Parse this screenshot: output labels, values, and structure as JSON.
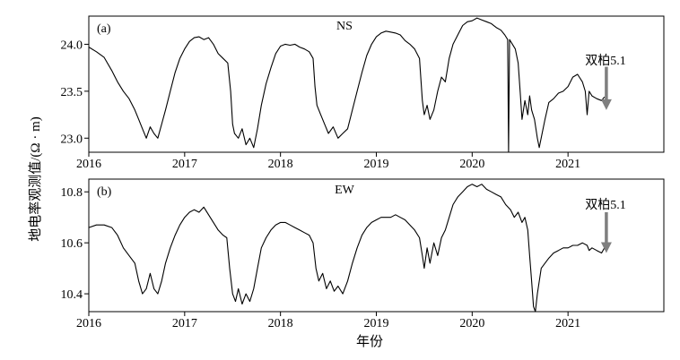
{
  "figure": {
    "xlabel": "年份",
    "ylabel": "地电率观测值/(Ω · m)"
  },
  "chart_data": [
    {
      "type": "line",
      "panel_label": "(a)",
      "title": "NS",
      "xlim": [
        2016.0,
        2022.0
      ],
      "ylim": [
        22.85,
        24.3
      ],
      "xticks": [
        2016,
        2017,
        2018,
        2019,
        2020,
        2021
      ],
      "yticks": [
        23.0,
        23.5,
        24.0
      ],
      "ytick_labels": [
        "23.0",
        "23.5",
        "24.0"
      ],
      "annotation": {
        "text": "双柏5.1",
        "x": 2021.4,
        "arrow_from": 23.76,
        "arrow_to": 23.3
      },
      "series": [
        {
          "x": [
            2016.0,
            2016.08,
            2016.16,
            2016.24,
            2016.3,
            2016.36,
            2016.42,
            2016.48,
            2016.52,
            2016.56,
            2016.6,
            2016.64,
            2016.68,
            2016.72,
            2016.76,
            2016.8,
            2016.85,
            2016.9,
            2016.95,
            2017.0,
            2017.05,
            2017.1,
            2017.15,
            2017.2,
            2017.25,
            2017.3,
            2017.35,
            2017.4,
            2017.45,
            2017.48,
            2017.5,
            2017.52,
            2017.56,
            2017.6,
            2017.64,
            2017.68,
            2017.72,
            2017.76,
            2017.8,
            2017.85,
            2017.9,
            2017.95,
            2018.0,
            2018.05,
            2018.1,
            2018.15,
            2018.2,
            2018.25,
            2018.3,
            2018.34,
            2018.36,
            2018.38,
            2018.42,
            2018.46,
            2018.5,
            2018.55,
            2018.6,
            2018.65,
            2018.7,
            2018.75,
            2018.8,
            2018.85,
            2018.9,
            2018.95,
            2019.0,
            2019.05,
            2019.1,
            2019.15,
            2019.2,
            2019.25,
            2019.3,
            2019.35,
            2019.4,
            2019.45,
            2019.48,
            2019.5,
            2019.53,
            2019.56,
            2019.6,
            2019.64,
            2019.68,
            2019.72,
            2019.76,
            2019.8,
            2019.85,
            2019.9,
            2019.95,
            2020.0,
            2020.05,
            2020.1,
            2020.15,
            2020.2,
            2020.25,
            2020.3,
            2020.34,
            2020.37,
            2020.38,
            2020.39,
            2020.42,
            2020.45,
            2020.48,
            2020.5,
            2020.52,
            2020.55,
            2020.58,
            2020.6,
            2020.62,
            2020.65,
            2020.68,
            2020.7,
            2020.73,
            2020.76,
            2020.8,
            2020.85,
            2020.9,
            2020.95,
            2021.0,
            2021.05,
            2021.1,
            2021.15,
            2021.18,
            2021.2,
            2021.22,
            2021.25,
            2021.3,
            2021.35,
            2021.38
          ],
          "y": [
            23.97,
            23.92,
            23.86,
            23.72,
            23.6,
            23.5,
            23.42,
            23.3,
            23.2,
            23.1,
            23.0,
            23.12,
            23.05,
            23.0,
            23.15,
            23.3,
            23.5,
            23.7,
            23.85,
            23.95,
            24.03,
            24.07,
            24.08,
            24.05,
            24.07,
            24.0,
            23.9,
            23.85,
            23.8,
            23.5,
            23.15,
            23.05,
            23.0,
            23.1,
            22.93,
            23.0,
            22.9,
            23.1,
            23.35,
            23.58,
            23.75,
            23.9,
            23.98,
            24.0,
            23.99,
            24.0,
            23.97,
            23.95,
            23.92,
            23.85,
            23.55,
            23.35,
            23.25,
            23.15,
            23.05,
            23.12,
            23.0,
            23.05,
            23.1,
            23.3,
            23.5,
            23.7,
            23.88,
            24.0,
            24.08,
            24.12,
            24.14,
            24.13,
            24.12,
            24.1,
            24.04,
            24.0,
            23.95,
            23.85,
            23.4,
            23.25,
            23.35,
            23.2,
            23.3,
            23.5,
            23.65,
            23.6,
            23.85,
            24.0,
            24.1,
            24.2,
            24.24,
            24.25,
            24.28,
            24.26,
            24.24,
            24.22,
            24.18,
            24.15,
            24.1,
            24.05,
            22.85,
            24.05,
            24.0,
            23.95,
            23.8,
            23.5,
            23.2,
            23.4,
            23.25,
            23.45,
            23.3,
            23.2,
            23.0,
            22.9,
            23.05,
            23.2,
            23.38,
            23.42,
            23.48,
            23.5,
            23.55,
            23.65,
            23.68,
            23.6,
            23.5,
            23.25,
            23.5,
            23.45,
            23.42,
            23.4,
            23.44
          ]
        }
      ]
    },
    {
      "type": "line",
      "panel_label": "(b)",
      "title": "EW",
      "xlim": [
        2016.0,
        2022.0
      ],
      "ylim": [
        10.33,
        10.85
      ],
      "xticks": [
        2016,
        2017,
        2018,
        2019,
        2020,
        2021
      ],
      "yticks": [
        10.4,
        10.6,
        10.8
      ],
      "ytick_labels": [
        "10.4",
        "10.6",
        "10.8"
      ],
      "annotation": {
        "text": "双柏5.1",
        "x": 2021.4,
        "arrow_from": 10.72,
        "arrow_to": 10.56
      },
      "series": [
        {
          "x": [
            2016.0,
            2016.08,
            2016.16,
            2016.24,
            2016.3,
            2016.36,
            2016.42,
            2016.48,
            2016.52,
            2016.56,
            2016.6,
            2016.64,
            2016.68,
            2016.72,
            2016.76,
            2016.8,
            2016.85,
            2016.9,
            2016.95,
            2017.0,
            2017.05,
            2017.1,
            2017.15,
            2017.2,
            2017.25,
            2017.3,
            2017.35,
            2017.4,
            2017.44,
            2017.47,
            2017.5,
            2017.53,
            2017.56,
            2017.6,
            2017.64,
            2017.68,
            2017.72,
            2017.76,
            2017.8,
            2017.85,
            2017.9,
            2017.95,
            2018.0,
            2018.05,
            2018.1,
            2018.15,
            2018.2,
            2018.25,
            2018.3,
            2018.34,
            2018.37,
            2018.4,
            2018.44,
            2018.48,
            2018.52,
            2018.56,
            2018.6,
            2018.65,
            2018.7,
            2018.75,
            2018.8,
            2018.85,
            2018.9,
            2018.95,
            2019.0,
            2019.05,
            2019.1,
            2019.15,
            2019.2,
            2019.25,
            2019.3,
            2019.35,
            2019.4,
            2019.45,
            2019.48,
            2019.5,
            2019.53,
            2019.56,
            2019.6,
            2019.64,
            2019.68,
            2019.72,
            2019.76,
            2019.8,
            2019.85,
            2019.9,
            2019.95,
            2020.0,
            2020.05,
            2020.1,
            2020.15,
            2020.2,
            2020.25,
            2020.3,
            2020.35,
            2020.4,
            2020.44,
            2020.48,
            2020.52,
            2020.55,
            2020.58,
            2020.6,
            2020.62,
            2020.64,
            2020.66,
            2020.68,
            2020.72,
            2020.76,
            2020.8,
            2020.85,
            2020.9,
            2020.95,
            2021.0,
            2021.05,
            2021.1,
            2021.15,
            2021.2,
            2021.22,
            2021.25,
            2021.3,
            2021.35,
            2021.38
          ],
          "y": [
            10.66,
            10.67,
            10.67,
            10.66,
            10.63,
            10.58,
            10.55,
            10.52,
            10.45,
            10.4,
            10.42,
            10.48,
            10.42,
            10.4,
            10.45,
            10.52,
            10.58,
            10.63,
            10.67,
            10.7,
            10.72,
            10.73,
            10.72,
            10.74,
            10.71,
            10.68,
            10.65,
            10.63,
            10.62,
            10.5,
            10.4,
            10.37,
            10.42,
            10.36,
            10.4,
            10.37,
            10.42,
            10.5,
            10.58,
            10.62,
            10.65,
            10.67,
            10.68,
            10.68,
            10.67,
            10.66,
            10.65,
            10.64,
            10.63,
            10.6,
            10.5,
            10.45,
            10.48,
            10.42,
            10.45,
            10.41,
            10.43,
            10.4,
            10.45,
            10.52,
            10.58,
            10.63,
            10.66,
            10.68,
            10.69,
            10.7,
            10.7,
            10.7,
            10.71,
            10.7,
            10.69,
            10.67,
            10.65,
            10.62,
            10.55,
            10.5,
            10.58,
            10.52,
            10.6,
            10.55,
            10.62,
            10.65,
            10.7,
            10.75,
            10.78,
            10.8,
            10.82,
            10.83,
            10.82,
            10.83,
            10.81,
            10.8,
            10.79,
            10.78,
            10.75,
            10.73,
            10.7,
            10.72,
            10.68,
            10.7,
            10.65,
            10.55,
            10.45,
            10.35,
            10.33,
            10.4,
            10.5,
            10.52,
            10.54,
            10.56,
            10.57,
            10.58,
            10.58,
            10.59,
            10.59,
            10.6,
            10.59,
            10.57,
            10.58,
            10.57,
            10.56,
            10.58
          ]
        }
      ]
    }
  ]
}
